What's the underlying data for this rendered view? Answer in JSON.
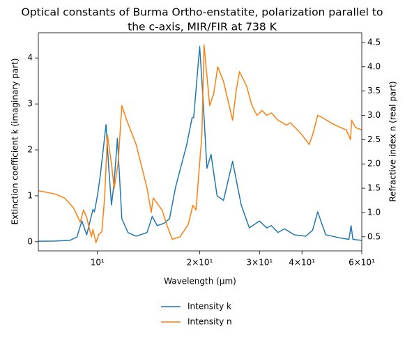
{
  "chart_data": {
    "type": "line",
    "title": [
      "Optical constants of Burma Ortho-enstatite, polarization parallel to",
      "the c-axis, MIR/FIR at 738 K"
    ],
    "x_label": "Wavelength (μm)",
    "y_label": "Extinction coefficient k (imaginary part)",
    "y2_label": "Refractive index n (real part)",
    "xscale": "log",
    "xlim": [
      6.7,
      60
    ],
    "xticks": [
      {
        "value": 10,
        "label": "10¹"
      },
      {
        "value": 20,
        "label": "2×10¹"
      },
      {
        "value": 30,
        "label": "3×10¹"
      },
      {
        "value": 40,
        "label": "4×10¹"
      },
      {
        "value": 60,
        "label": "6×10¹"
      }
    ],
    "ylim": [
      -0.2,
      4.55
    ],
    "yticks": [
      0,
      1,
      2,
      3,
      4
    ],
    "y2lim": [
      0.21,
      4.7
    ],
    "y2ticks": [
      0.5,
      {
        "value": 1,
        "label": "1.0"
      },
      1.5,
      {
        "value": 2,
        "label": "2.0"
      },
      2.5,
      {
        "value": 3,
        "label": "3.0"
      },
      3.5,
      {
        "value": 4,
        "label": "4.0"
      },
      4.5
    ],
    "legend": "below",
    "series": [
      {
        "name": "Intensity k",
        "color": "#1f77b4",
        "axis": "y",
        "x": [
          6.7,
          7.5,
          8.3,
          8.7,
          9.0,
          9.3,
          9.7,
          9.8,
          10.0,
          10.2,
          10.6,
          10.8,
          11.0,
          11.2,
          11.45,
          11.8,
          12.3,
          13,
          14,
          14.5,
          15,
          15.7,
          16.3,
          17,
          18.3,
          19.0,
          19.2,
          20,
          20.5,
          21.0,
          21.6,
          22.5,
          23.5,
          25.0,
          26.5,
          28,
          30,
          31.5,
          32.5,
          34,
          35.5,
          38,
          41,
          43,
          44.5,
          47,
          52,
          55,
          55.8,
          56.5,
          60
        ],
        "values": [
          0.01,
          0.015,
          0.03,
          0.1,
          0.45,
          0.15,
          0.7,
          0.65,
          1.0,
          1.45,
          2.55,
          1.6,
          0.8,
          1.3,
          2.25,
          0.5,
          0.2,
          0.12,
          0.2,
          0.55,
          0.35,
          0.4,
          0.5,
          1.2,
          2.1,
          2.7,
          2.7,
          4.25,
          3.0,
          1.6,
          1.9,
          1.0,
          0.9,
          1.75,
          0.8,
          0.3,
          0.45,
          0.3,
          0.35,
          0.2,
          0.28,
          0.15,
          0.12,
          0.25,
          0.65,
          0.15,
          0.08,
          0.05,
          0.35,
          0.05,
          0.03
        ]
      },
      {
        "name": "Intensity n",
        "color": "#ff7f0e",
        "axis": "y2",
        "x": [
          6.7,
          7.5,
          8,
          8.5,
          8.9,
          9.1,
          9.3,
          9.6,
          9.7,
          9.9,
          10.1,
          10.3,
          10.5,
          10.7,
          11.0,
          11.2,
          11.5,
          11.8,
          12.2,
          13,
          14,
          14.4,
          14.6,
          15.5,
          16,
          16.6,
          17.5,
          18.5,
          19.1,
          19.5,
          20.3,
          20.6,
          21.4,
          22,
          22.6,
          23.5,
          25,
          25.6,
          26.2,
          27.5,
          28.5,
          29.5,
          30.5,
          31.5,
          32.5,
          34,
          36,
          37,
          40,
          42,
          43,
          44.5,
          46,
          50,
          54,
          55.6,
          56,
          57.5,
          60
        ],
        "values": [
          1.45,
          1.38,
          1.3,
          1.1,
          0.8,
          1.05,
          0.9,
          0.5,
          0.65,
          0.38,
          0.55,
          0.6,
          1.3,
          2.6,
          2.0,
          1.5,
          2.0,
          3.2,
          2.9,
          2.4,
          1.5,
          1.0,
          1.3,
          1.05,
          0.75,
          0.45,
          0.5,
          0.75,
          1.15,
          1.05,
          2.6,
          4.45,
          3.2,
          3.45,
          4.0,
          3.7,
          2.9,
          3.5,
          3.9,
          3.6,
          3.2,
          3.0,
          3.1,
          3.0,
          3.05,
          2.9,
          2.8,
          2.85,
          2.6,
          2.4,
          2.6,
          3.0,
          2.95,
          2.8,
          2.7,
          2.5,
          2.9,
          2.75,
          2.7
        ]
      }
    ]
  }
}
